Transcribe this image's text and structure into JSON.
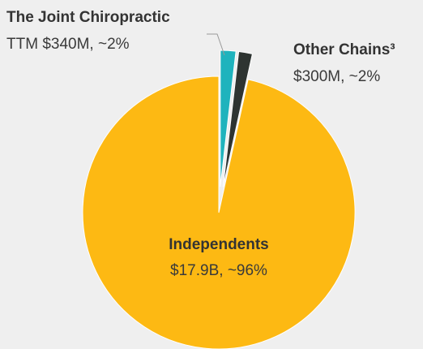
{
  "chart_data": {
    "type": "pie",
    "categories": [
      "The Joint Chiropractic",
      "Other Chains³",
      "Independents"
    ],
    "values": [
      340000000,
      300000000,
      17900000000
    ],
    "value_labels": [
      "TTM $340M, ~2%",
      "$300M, ~2%",
      "$17.9B, ~96%"
    ],
    "colors": [
      "#1fb3bd",
      "#2e3431",
      "#fdb913"
    ]
  }
}
